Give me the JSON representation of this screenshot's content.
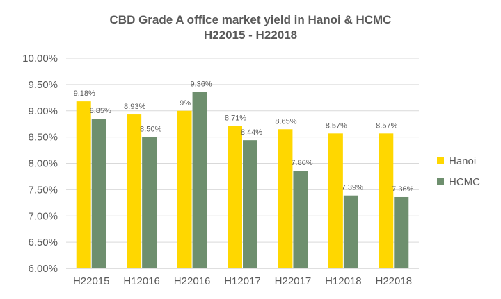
{
  "chart_data": {
    "type": "bar",
    "title": "CBD Grade A office market yield in Hanoi & HCMC",
    "subtitle": "H22015 - H22018",
    "categories": [
      "H22015",
      "H12016",
      "H22016",
      "H12017",
      "H22017",
      "H12018",
      "H22018"
    ],
    "series": [
      {
        "name": "Hanoi",
        "color": "#FFD700",
        "values": [
          9.18,
          8.93,
          9.0,
          8.71,
          8.65,
          8.57,
          8.57
        ],
        "labels": [
          "9.18%",
          "8.93%",
          "9%",
          "8.71%",
          "8.65%",
          "8.57%",
          "8.57%"
        ]
      },
      {
        "name": "HCMC",
        "color": "#6E8F6E",
        "values": [
          8.85,
          8.5,
          9.36,
          8.44,
          7.86,
          7.39,
          7.36
        ],
        "labels": [
          "8.85%",
          "8.50%",
          "9.36%",
          "8.44%",
          "7.86%",
          "7.39%",
          "7.36%"
        ]
      }
    ],
    "ylim": [
      6.0,
      10.0
    ],
    "yticks": [
      6.0,
      6.5,
      7.0,
      7.5,
      8.0,
      8.5,
      9.0,
      9.5,
      10.0
    ],
    "ytick_labels": [
      "6.00%",
      "6.50%",
      "7.00%",
      "7.50%",
      "8.00%",
      "8.50%",
      "9.00%",
      "9.50%",
      "10.00%"
    ],
    "xlabel": "",
    "ylabel": "",
    "grid": true,
    "legend_position": "right"
  }
}
